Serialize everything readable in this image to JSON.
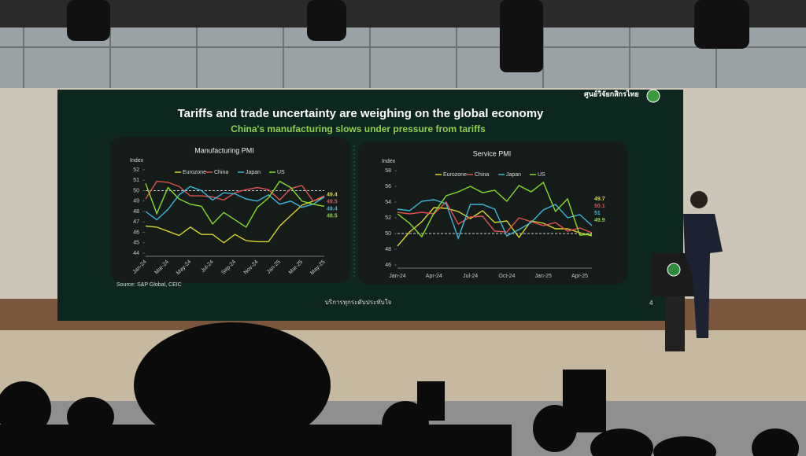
{
  "slide": {
    "title": "Tariffs and trade uncertainty are weighing on the global economy",
    "subtitle": "China's manufacturing slows under pressure from tariffs",
    "source": "Source: S&P Global, CEIC",
    "footer": "บริการทุกระดับประทับใจ",
    "page_number": "4",
    "logo_text": "ศูนย์วิจัยกสิกรไทย"
  },
  "chart_data": [
    {
      "type": "line",
      "title": "Manufacturing PMI",
      "y_label": "Index",
      "categories": [
        "Jan-24",
        null,
        "Mar-24",
        null,
        "May-24",
        null,
        "Jul-24",
        null,
        "Sep-24",
        null,
        "Nov-24",
        null,
        "Jan-25",
        null,
        "Mar-25",
        null,
        "May-25"
      ],
      "series": [
        {
          "name": "Eurozone",
          "color": "#d8d62c",
          "values": [
            46.6,
            46.5,
            46.1,
            45.7,
            46.5,
            45.8,
            45.8,
            45.0,
            45.8,
            45.2,
            45.1,
            45.1,
            46.6,
            47.6,
            48.6,
            49.0,
            49.4
          ]
        },
        {
          "name": "China",
          "color": "#e0534f",
          "values": [
            49.2,
            50.9,
            50.8,
            50.4,
            49.5,
            49.5,
            49.4,
            49.1,
            49.8,
            50.1,
            50.3,
            50.1,
            49.1,
            50.2,
            50.5,
            49.0,
            49.5
          ]
        },
        {
          "name": "Japan",
          "color": "#3db7dc",
          "values": [
            48.0,
            47.2,
            48.2,
            49.6,
            50.4,
            50.0,
            49.1,
            49.8,
            49.7,
            49.2,
            49.0,
            49.6,
            48.7,
            49.0,
            48.4,
            48.7,
            49.4
          ]
        },
        {
          "name": "US",
          "color": "#86dc2a",
          "values": [
            50.7,
            47.8,
            50.3,
            49.2,
            48.7,
            48.5,
            46.8,
            47.9,
            47.2,
            46.5,
            48.4,
            49.3,
            50.9,
            50.3,
            49.0,
            48.7,
            48.5
          ]
        }
      ],
      "ylim": [
        44,
        52
      ],
      "yticks": [
        44,
        45,
        46,
        47,
        48,
        49,
        50,
        51,
        52
      ],
      "reference_line": 50
    },
    {
      "type": "line",
      "title": "Service PMI",
      "y_label": "Index",
      "categories": [
        "Jan-24",
        null,
        null,
        "Apr-24",
        null,
        null,
        "Jul-24",
        null,
        null,
        "Oct-24",
        null,
        null,
        "Jan-25",
        null,
        null,
        "Apr-25",
        null
      ],
      "series": [
        {
          "name": "Eurozone",
          "color": "#d8d62c",
          "values": [
            48.4,
            50.2,
            51.5,
            53.3,
            53.2,
            52.8,
            51.9,
            52.9,
            51.4,
            51.6,
            49.5,
            51.6,
            51.3,
            50.6,
            50.6,
            50.1,
            49.7
          ]
        },
        {
          "name": "China",
          "color": "#e0534f",
          "values": [
            52.7,
            52.5,
            52.7,
            52.5,
            54.0,
            51.2,
            52.1,
            52.2,
            50.3,
            50.2,
            52.0,
            51.5,
            51.0,
            51.4,
            50.3,
            50.7,
            50.1
          ]
        },
        {
          "name": "Japan",
          "color": "#3db7dc",
          "values": [
            53.1,
            52.9,
            54.1,
            54.3,
            53.8,
            49.4,
            53.7,
            53.7,
            53.1,
            49.7,
            50.5,
            51.4,
            53.0,
            53.7,
            52.0,
            52.4,
            51
          ]
        },
        {
          "name": "US",
          "color": "#86dc2a",
          "values": [
            52.5,
            51.3,
            49.6,
            52.6,
            54.8,
            55.3,
            56.0,
            55.2,
            55.5,
            54.1,
            56.1,
            55.3,
            56.5,
            52.8,
            54.4,
            49.8,
            49.9
          ]
        }
      ],
      "ylim": [
        46,
        58
      ],
      "yticks": [
        46,
        48,
        50,
        52,
        54,
        56,
        58
      ],
      "reference_line": 50
    }
  ]
}
